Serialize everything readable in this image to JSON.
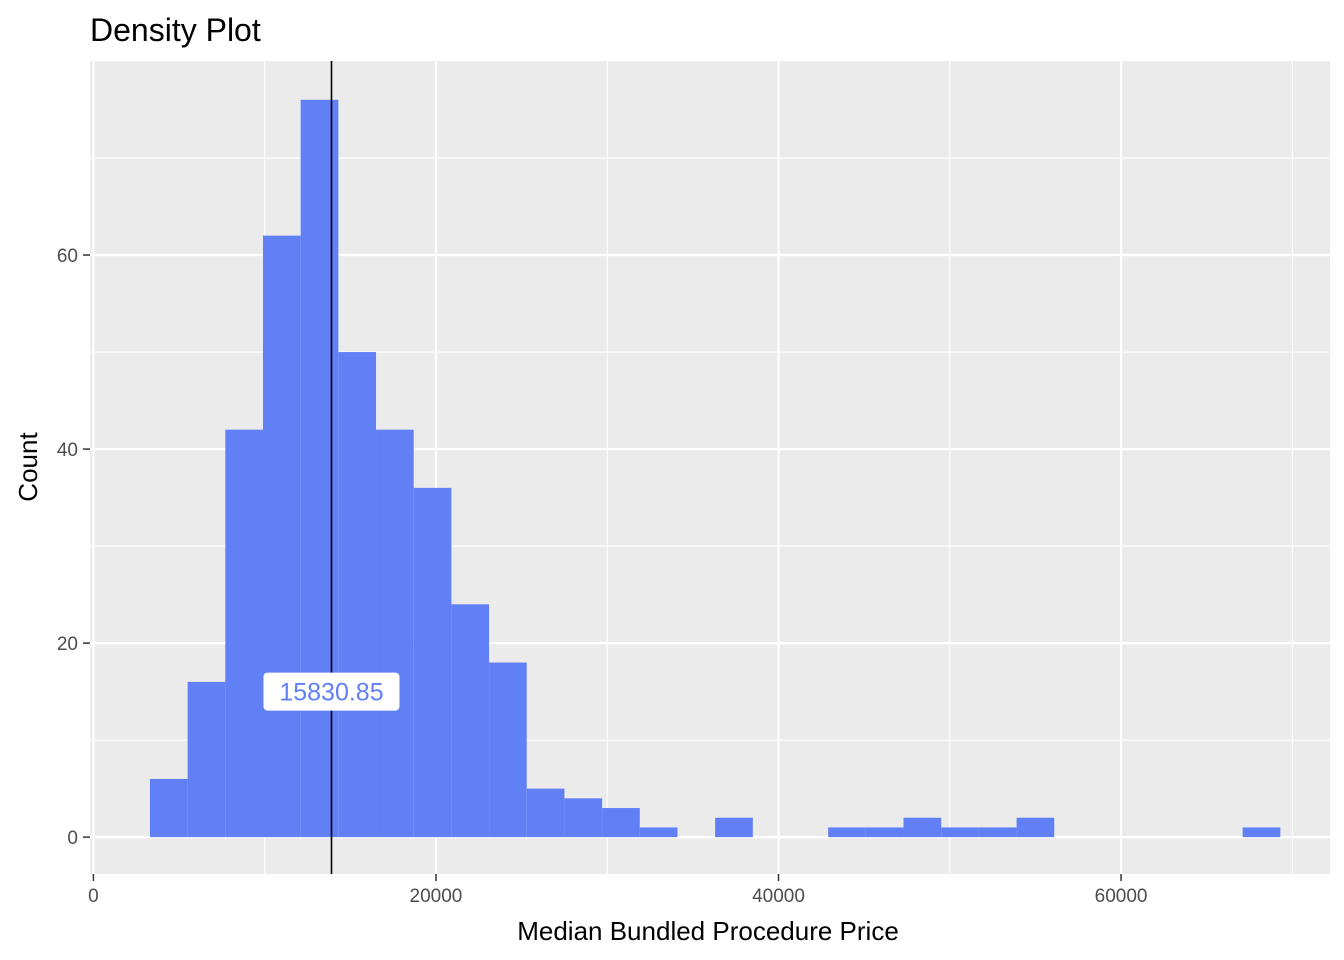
{
  "chart_data": {
    "type": "bar",
    "title": "Density Plot",
    "xlabel": "Median Bundled Procedure Price",
    "ylabel": "Count",
    "xlim": [
      -200,
      72200
    ],
    "ylim": [
      -3.8,
      80
    ],
    "x_ticks": [
      0,
      20000,
      40000,
      60000
    ],
    "x_tick_labels": [
      "0",
      "20000",
      "40000",
      "60000"
    ],
    "y_ticks": [
      0,
      20,
      40,
      60
    ],
    "y_tick_labels": [
      "0",
      "20",
      "40",
      "60"
    ],
    "bin_width": 2200,
    "bins": [
      {
        "x_start": 3300,
        "x_end": 5500,
        "count": 6
      },
      {
        "x_start": 5500,
        "x_end": 7700,
        "count": 16
      },
      {
        "x_start": 7700,
        "x_end": 9900,
        "count": 42
      },
      {
        "x_start": 9900,
        "x_end": 12100,
        "count": 62
      },
      {
        "x_start": 12100,
        "x_end": 14300,
        "count": 76
      },
      {
        "x_start": 14300,
        "x_end": 16500,
        "count": 50
      },
      {
        "x_start": 16500,
        "x_end": 18700,
        "count": 42
      },
      {
        "x_start": 18700,
        "x_end": 20900,
        "count": 36
      },
      {
        "x_start": 20900,
        "x_end": 23100,
        "count": 24
      },
      {
        "x_start": 23100,
        "x_end": 25300,
        "count": 18
      },
      {
        "x_start": 25300,
        "x_end": 27500,
        "count": 5
      },
      {
        "x_start": 27500,
        "x_end": 29700,
        "count": 4
      },
      {
        "x_start": 29700,
        "x_end": 31900,
        "count": 3
      },
      {
        "x_start": 31900,
        "x_end": 34100,
        "count": 1
      },
      {
        "x_start": 34100,
        "x_end": 36300,
        "count": 0
      },
      {
        "x_start": 36300,
        "x_end": 38500,
        "count": 2
      },
      {
        "x_start": 38500,
        "x_end": 40700,
        "count": 0
      },
      {
        "x_start": 40700,
        "x_end": 42900,
        "count": 0
      },
      {
        "x_start": 42900,
        "x_end": 45100,
        "count": 1
      },
      {
        "x_start": 45100,
        "x_end": 47300,
        "count": 1
      },
      {
        "x_start": 47300,
        "x_end": 49500,
        "count": 2
      },
      {
        "x_start": 49500,
        "x_end": 51700,
        "count": 1
      },
      {
        "x_start": 51700,
        "x_end": 53900,
        "count": 1
      },
      {
        "x_start": 53900,
        "x_end": 56100,
        "count": 2
      },
      {
        "x_start": 56100,
        "x_end": 58300,
        "count": 0
      },
      {
        "x_start": 58300,
        "x_end": 60500,
        "count": 0
      },
      {
        "x_start": 60500,
        "x_end": 62700,
        "count": 0
      },
      {
        "x_start": 62700,
        "x_end": 64900,
        "count": 0
      },
      {
        "x_start": 64900,
        "x_end": 67100,
        "count": 0
      },
      {
        "x_start": 67100,
        "x_end": 69300,
        "count": 1
      }
    ],
    "vline_x": 13900,
    "annotation": {
      "text": "15830.85",
      "x": 13900,
      "y": 15
    },
    "bar_color": "#6180f6",
    "panel_background": "#ebebeb",
    "grid_color": "#ffffff",
    "vline_color": "#000000",
    "grid": true,
    "legend": "none"
  }
}
